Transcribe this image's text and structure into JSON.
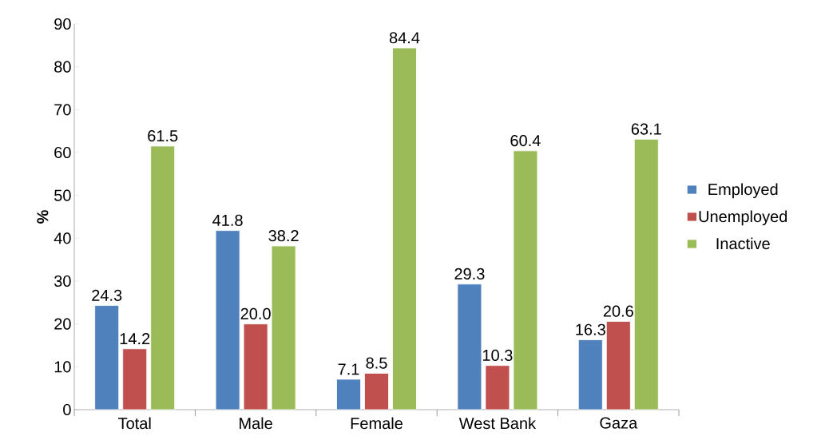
{
  "chart_data": {
    "type": "bar",
    "ylabel": "%",
    "categories": [
      "Total",
      "Male",
      "Female",
      "West Bank",
      "Gaza"
    ],
    "series": [
      {
        "name": "Employed",
        "color": "#4f81bd",
        "values": [
          24.3,
          41.8,
          7.1,
          29.3,
          16.3
        ],
        "value_labels": [
          "24.3",
          "41.8",
          "7.1",
          "29.3",
          "16.3"
        ]
      },
      {
        "name": "Unemployed",
        "color": "#c0504d",
        "values": [
          14.2,
          20.0,
          8.5,
          10.3,
          20.6
        ],
        "value_labels": [
          "14.2",
          "20.0",
          "8.5",
          "10.3",
          "20.6"
        ]
      },
      {
        "name": "Inactive",
        "color": "#9bbb59",
        "values": [
          61.5,
          38.2,
          84.4,
          60.4,
          63.1
        ],
        "value_labels": [
          "61.5",
          "38.2",
          "84.4",
          "60.4",
          "63.1"
        ]
      }
    ],
    "ylim": [
      0,
      90
    ],
    "yticks": [
      0,
      10,
      20,
      30,
      40,
      50,
      60,
      70,
      80,
      90
    ],
    "grid": false,
    "legend": "right"
  }
}
